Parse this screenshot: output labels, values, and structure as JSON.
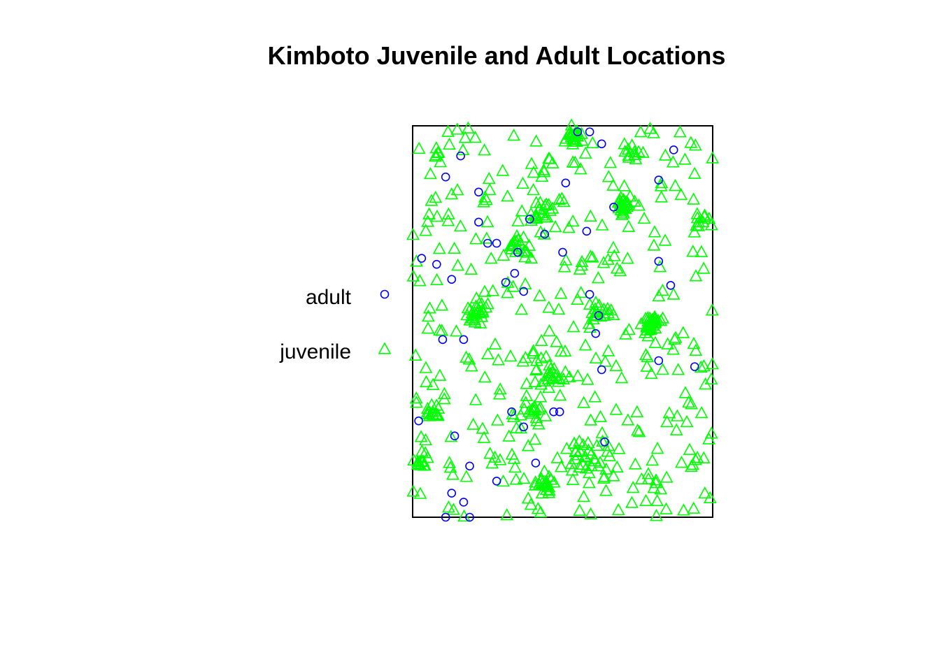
{
  "chart_data": {
    "type": "scatter",
    "title": "Kimboto Juvenile and Adult Locations",
    "xlabel": "",
    "ylabel": "",
    "axes": "none",
    "grid": false,
    "legend_position": "left",
    "window": {
      "x": [
        0,
        100
      ],
      "y": [
        0,
        130
      ]
    },
    "series": [
      {
        "name": "adult",
        "marker": "circle",
        "color": "#0000ff",
        "points": [
          [
            55,
            128
          ],
          [
            59,
            128
          ],
          [
            63,
            124
          ],
          [
            87,
            122
          ],
          [
            16,
            120
          ],
          [
            11,
            113
          ],
          [
            82,
            112
          ],
          [
            51,
            111
          ],
          [
            22,
            108
          ],
          [
            67,
            103
          ],
          [
            22,
            98
          ],
          [
            39,
            99
          ],
          [
            58,
            95
          ],
          [
            44,
            94
          ],
          [
            25,
            91
          ],
          [
            28,
            91
          ],
          [
            50,
            88
          ],
          [
            35,
            88
          ],
          [
            8,
            84
          ],
          [
            3,
            86
          ],
          [
            82,
            85
          ],
          [
            34,
            81
          ],
          [
            13,
            79
          ],
          [
            31,
            78
          ],
          [
            37,
            75
          ],
          [
            59,
            74
          ],
          [
            86,
            77
          ],
          [
            62,
            67
          ],
          [
            61,
            61
          ],
          [
            10,
            59
          ],
          [
            17,
            59
          ],
          [
            82,
            52
          ],
          [
            94,
            50
          ],
          [
            63,
            49
          ],
          [
            33,
            35
          ],
          [
            47,
            35
          ],
          [
            49,
            35
          ],
          [
            2,
            32
          ],
          [
            37,
            30
          ],
          [
            14,
            27
          ],
          [
            64,
            25
          ],
          [
            41,
            18
          ],
          [
            19,
            17
          ],
          [
            28,
            12
          ],
          [
            13,
            8
          ],
          [
            17,
            5
          ],
          [
            11,
            0
          ],
          [
            19,
            0
          ]
        ]
      },
      {
        "name": "juvenile",
        "marker": "triangle",
        "color": "#00ff00",
        "clusters": [
          {
            "cx": 53,
            "cy": 127,
            "spread": 3.5,
            "count": 22
          },
          {
            "cx": 73,
            "cy": 121,
            "spread": 3.5,
            "count": 12
          },
          {
            "cx": 8,
            "cy": 121,
            "spread": 2.5,
            "count": 5
          },
          {
            "cx": 70,
            "cy": 103,
            "spread": 3,
            "count": 24
          },
          {
            "cx": 44,
            "cy": 102,
            "spread": 5,
            "count": 18
          },
          {
            "cx": 35,
            "cy": 90,
            "spread": 5,
            "count": 16
          },
          {
            "cx": 22,
            "cy": 68,
            "spread": 4,
            "count": 26
          },
          {
            "cx": 80,
            "cy": 64,
            "spread": 3.5,
            "count": 30
          },
          {
            "cx": 62,
            "cy": 68,
            "spread": 5,
            "count": 14
          },
          {
            "cx": 45,
            "cy": 48,
            "spread": 5,
            "count": 18
          },
          {
            "cx": 7,
            "cy": 35,
            "spread": 3,
            "count": 12
          },
          {
            "cx": 40,
            "cy": 36,
            "spread": 5,
            "count": 14
          },
          {
            "cx": 58,
            "cy": 20,
            "spread": 6,
            "count": 26
          },
          {
            "cx": 44,
            "cy": 10,
            "spread": 3,
            "count": 18
          },
          {
            "cx": 3,
            "cy": 18,
            "spread": 3,
            "count": 14
          },
          {
            "cx": 95,
            "cy": 100,
            "spread": 4,
            "count": 8
          },
          {
            "cx": 80,
            "cy": 10,
            "spread": 5,
            "count": 8
          }
        ],
        "background_count": 330
      }
    ]
  }
}
